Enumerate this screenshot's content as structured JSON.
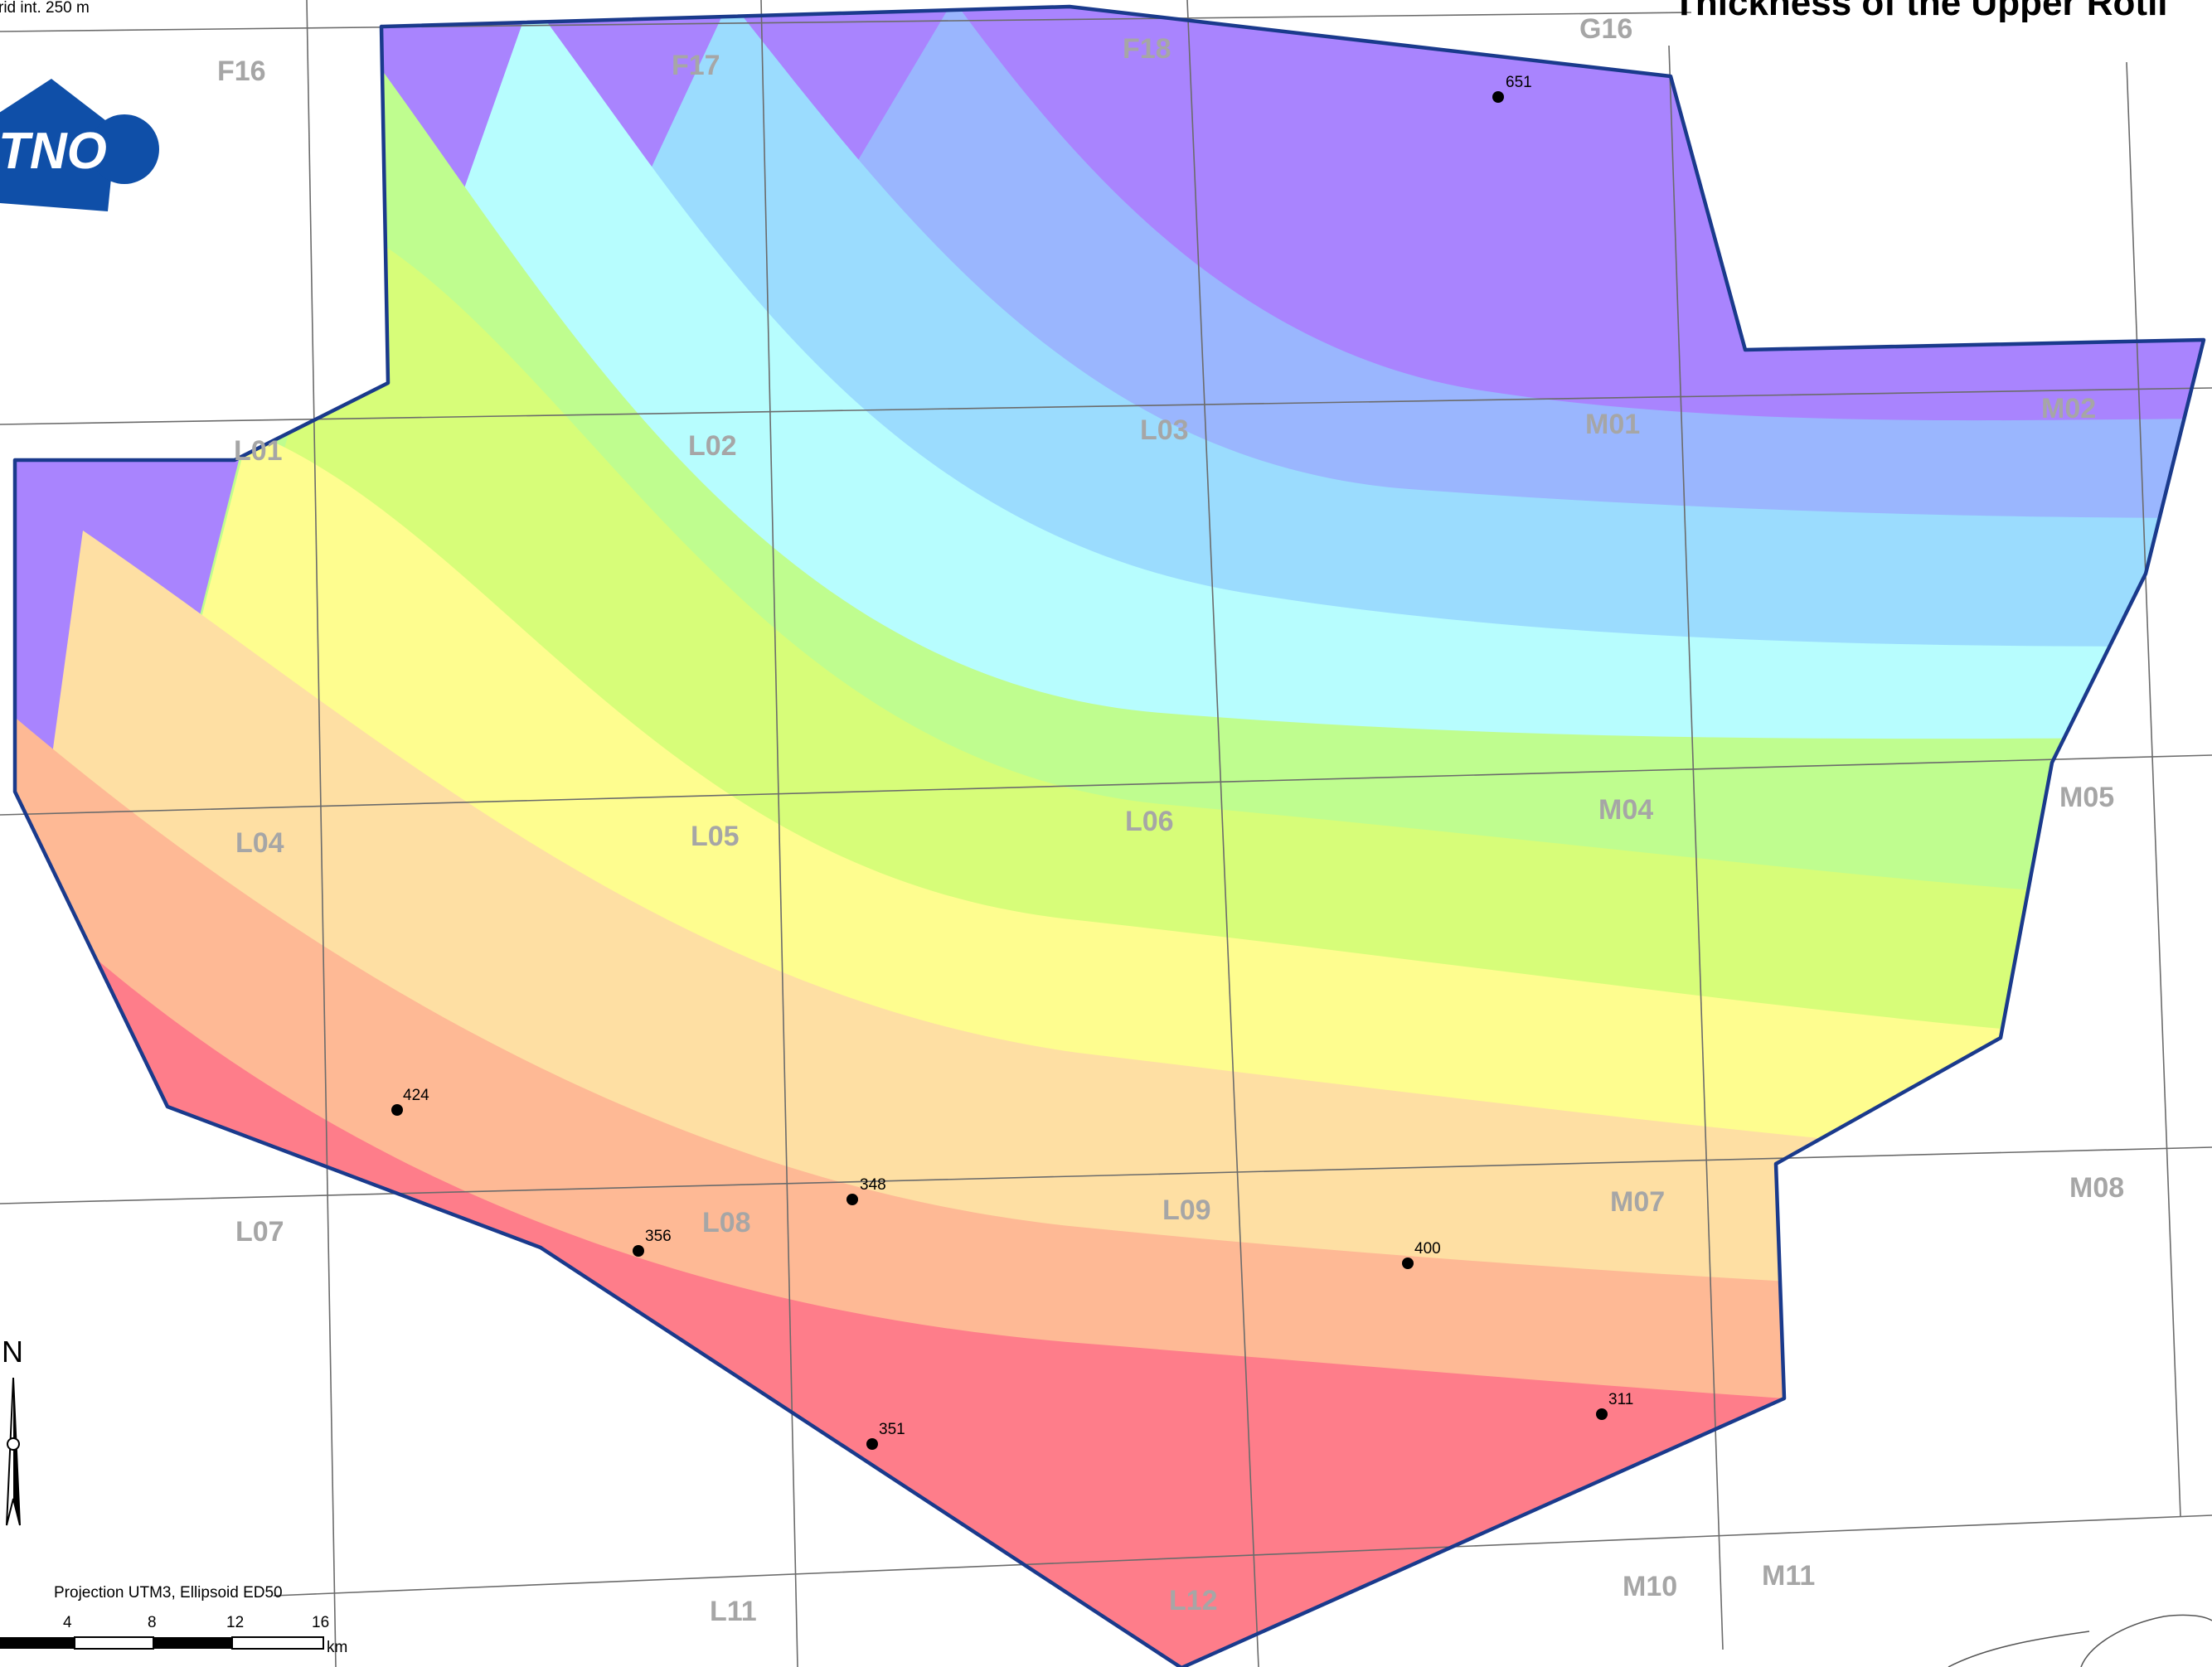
{
  "map": {
    "title": "Thickness of the Upper Rotli",
    "grid_interval_note": "rid int. 250 m",
    "projection_note": "Projection UTM3, Ellipsoid  ED50",
    "north_label": "N",
    "logo_text": "TNO",
    "scale_bar": {
      "labels": [
        "4",
        "8",
        "12",
        "16"
      ],
      "unit": "km"
    },
    "blocks": [
      {
        "label": "F16"
      },
      {
        "label": "F17"
      },
      {
        "label": "F18"
      },
      {
        "label": "G16"
      },
      {
        "label": "L01"
      },
      {
        "label": "L02"
      },
      {
        "label": "L03"
      },
      {
        "label": "M01"
      },
      {
        "label": "M02"
      },
      {
        "label": "L04"
      },
      {
        "label": "L05"
      },
      {
        "label": "L06"
      },
      {
        "label": "M04"
      },
      {
        "label": "M05"
      },
      {
        "label": "L07"
      },
      {
        "label": "L08"
      },
      {
        "label": "L09"
      },
      {
        "label": "M07"
      },
      {
        "label": "M08"
      },
      {
        "label": "L11"
      },
      {
        "label": "L12"
      },
      {
        "label": "M10"
      },
      {
        "label": "M11"
      }
    ],
    "wells": [
      {
        "value": "651"
      },
      {
        "value": "424"
      },
      {
        "value": "348"
      },
      {
        "value": "356"
      },
      {
        "value": "400"
      },
      {
        "value": "351"
      },
      {
        "value": "311"
      }
    ],
    "colors": {
      "outline": "#1a3a8c",
      "grid_lines": "#6b6b6b",
      "block_label": "#a6a6a6",
      "logo": "#0f4fa8",
      "bands": [
        "#a984fe",
        "#9ab6fe",
        "#9bdcfe",
        "#b7fdfe",
        "#bffd8f",
        "#d7fd79",
        "#fefd8f",
        "#fedfa3",
        "#feb995",
        "#fe7d8a"
      ]
    }
  }
}
